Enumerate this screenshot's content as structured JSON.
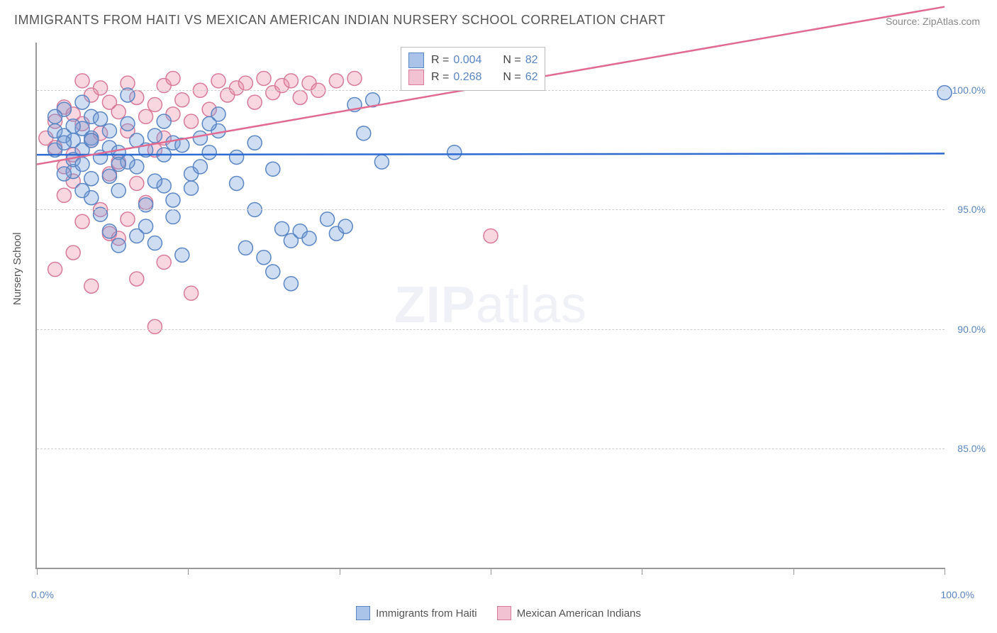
{
  "title": "IMMIGRANTS FROM HAITI VS MEXICAN AMERICAN INDIAN NURSERY SCHOOL CORRELATION CHART",
  "source": "Source: ZipAtlas.com",
  "ylabel": "Nursery School",
  "watermark_bold": "ZIP",
  "watermark_rest": "atlas",
  "chart": {
    "type": "scatter",
    "xlim": [
      0,
      100
    ],
    "ylim": [
      80,
      102
    ],
    "xtick_positions": [
      0,
      16.67,
      33.33,
      50,
      66.67,
      83.33,
      100
    ],
    "xtick_labels": {
      "left": "0.0%",
      "right": "100.0%"
    },
    "ytick_values": [
      85,
      90,
      95,
      100
    ],
    "ytick_labels": [
      "85.0%",
      "90.0%",
      "95.0%",
      "100.0%"
    ],
    "background_color": "#ffffff",
    "grid_color": "#cccccc",
    "axis_color": "#999999",
    "marker_radius": 10,
    "marker_stroke_width": 1.5,
    "series": [
      {
        "name": "Immigrants from Haiti",
        "color_fill": "rgba(114,159,218,0.35)",
        "color_stroke": "#5b86c4",
        "swatch_fill": "#a9c4e8",
        "swatch_border": "#5b86c4",
        "regression": {
          "y_at_x0": 97.3,
          "y_at_x100": 97.35,
          "color": "#2e6bd1",
          "width": 2.5
        },
        "r": "0.004",
        "n": "82",
        "points": [
          [
            2,
            98.3
          ],
          [
            3,
            98.1
          ],
          [
            4,
            97.9
          ],
          [
            5,
            98.4
          ],
          [
            6,
            98.0
          ],
          [
            7,
            97.2
          ],
          [
            8,
            97.6
          ],
          [
            9,
            97.4
          ],
          [
            10,
            98.6
          ],
          [
            11,
            96.8
          ],
          [
            12,
            95.2
          ],
          [
            13,
            98.1
          ],
          [
            14,
            97.3
          ],
          [
            15,
            97.8
          ],
          [
            3,
            99.2
          ],
          [
            5,
            99.5
          ],
          [
            6,
            98.9
          ],
          [
            8,
            96.4
          ],
          [
            9,
            95.8
          ],
          [
            10,
            97.0
          ],
          [
            11,
            97.9
          ],
          [
            12,
            94.3
          ],
          [
            14,
            96.0
          ],
          [
            15,
            94.7
          ],
          [
            16,
            97.7
          ],
          [
            17,
            96.5
          ],
          [
            18,
            98.0
          ],
          [
            4,
            96.6
          ],
          [
            5,
            97.5
          ],
          [
            6,
            95.5
          ],
          [
            7,
            98.8
          ],
          [
            8,
            94.1
          ],
          [
            9,
            93.5
          ],
          [
            10,
            99.8
          ],
          [
            12,
            97.5
          ],
          [
            13,
            96.2
          ],
          [
            14,
            98.7
          ],
          [
            15,
            95.4
          ],
          [
            16,
            93.1
          ],
          [
            17,
            95.9
          ],
          [
            18,
            96.8
          ],
          [
            19,
            97.4
          ],
          [
            20,
            98.3
          ],
          [
            22,
            96.1
          ],
          [
            23,
            93.4
          ],
          [
            24,
            95.0
          ],
          [
            25,
            93.0
          ],
          [
            26,
            92.4
          ],
          [
            27,
            94.2
          ],
          [
            28,
            93.7
          ],
          [
            29,
            94.1
          ],
          [
            30,
            93.8
          ],
          [
            32,
            94.6
          ],
          [
            33,
            94.0
          ],
          [
            34,
            94.3
          ],
          [
            35,
            99.4
          ],
          [
            36,
            98.2
          ],
          [
            37,
            99.6
          ],
          [
            38,
            97.0
          ],
          [
            24,
            97.8
          ],
          [
            26,
            96.7
          ],
          [
            28,
            91.9
          ],
          [
            22,
            97.2
          ],
          [
            11,
            93.9
          ],
          [
            7,
            94.8
          ],
          [
            4,
            97.1
          ],
          [
            2,
            97.5
          ],
          [
            19,
            98.6
          ],
          [
            20,
            99.0
          ],
          [
            13,
            93.6
          ],
          [
            9,
            96.9
          ],
          [
            46,
            97.4
          ],
          [
            100,
            99.9
          ],
          [
            3,
            97.8
          ],
          [
            4,
            98.5
          ],
          [
            5,
            96.9
          ],
          [
            6,
            97.9
          ],
          [
            2,
            98.9
          ],
          [
            3,
            96.5
          ],
          [
            8,
            98.3
          ],
          [
            5,
            95.8
          ],
          [
            6,
            96.3
          ]
        ]
      },
      {
        "name": "Mexican American Indians",
        "color_fill": "rgba(236,140,170,0.35)",
        "color_stroke": "#d87a9a",
        "swatch_fill": "#f3c2d2",
        "swatch_border": "#d87a9a",
        "regression": {
          "y_at_x0": 96.9,
          "y_at_x100": 103.5,
          "color": "#e06a92",
          "width": 2.5
        },
        "r": "0.268",
        "n": "62",
        "points": [
          [
            1,
            98.0
          ],
          [
            2,
            97.6
          ],
          [
            2,
            98.7
          ],
          [
            3,
            99.3
          ],
          [
            3,
            96.8
          ],
          [
            4,
            99.0
          ],
          [
            4,
            97.3
          ],
          [
            5,
            98.6
          ],
          [
            5,
            100.4
          ],
          [
            6,
            99.8
          ],
          [
            6,
            97.9
          ],
          [
            7,
            100.1
          ],
          [
            7,
            98.2
          ],
          [
            8,
            99.5
          ],
          [
            8,
            96.5
          ],
          [
            9,
            99.1
          ],
          [
            9,
            97.0
          ],
          [
            10,
            98.3
          ],
          [
            10,
            100.3
          ],
          [
            11,
            99.7
          ],
          [
            11,
            96.1
          ],
          [
            12,
            98.9
          ],
          [
            12,
            95.3
          ],
          [
            13,
            99.4
          ],
          [
            13,
            97.5
          ],
          [
            14,
            100.2
          ],
          [
            14,
            98.0
          ],
          [
            15,
            99.0
          ],
          [
            15,
            100.5
          ],
          [
            16,
            99.6
          ],
          [
            17,
            98.7
          ],
          [
            18,
            100.0
          ],
          [
            19,
            99.2
          ],
          [
            20,
            100.4
          ],
          [
            21,
            99.8
          ],
          [
            22,
            100.1
          ],
          [
            23,
            100.3
          ],
          [
            24,
            99.5
          ],
          [
            25,
            100.5
          ],
          [
            26,
            99.9
          ],
          [
            27,
            100.2
          ],
          [
            28,
            100.4
          ],
          [
            29,
            99.7
          ],
          [
            30,
            100.3
          ],
          [
            31,
            100.0
          ],
          [
            33,
            100.4
          ],
          [
            35,
            100.5
          ],
          [
            2,
            92.5
          ],
          [
            4,
            93.2
          ],
          [
            6,
            91.8
          ],
          [
            8,
            94.0
          ],
          [
            11,
            92.1
          ],
          [
            13,
            90.1
          ],
          [
            5,
            94.5
          ],
          [
            3,
            95.6
          ],
          [
            7,
            95.0
          ],
          [
            9,
            93.8
          ],
          [
            10,
            94.6
          ],
          [
            14,
            92.8
          ],
          [
            50,
            93.9
          ],
          [
            17,
            91.5
          ],
          [
            4,
            96.2
          ]
        ]
      }
    ]
  },
  "legend_top": {
    "r_label": "R =",
    "n_label": "N ="
  },
  "legend_bottom": {
    "items": [
      "Immigrants from Haiti",
      "Mexican American Indians"
    ]
  }
}
